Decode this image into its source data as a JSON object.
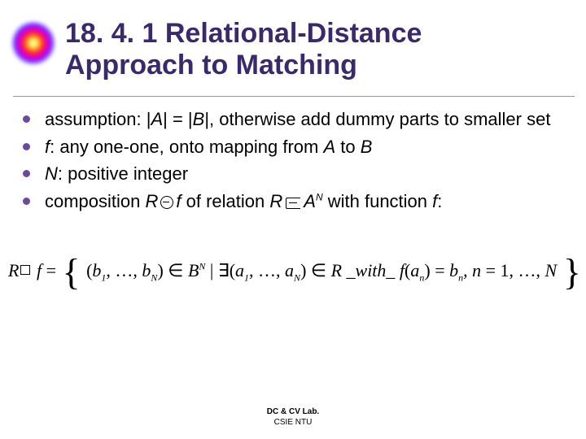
{
  "title": "18. 4. 1 Relational-Distance Approach to Matching",
  "title_color": "#3b2a6b",
  "title_fontsize": 34,
  "bullet_dot_color": "#6a4aa0",
  "body_fontsize": 22,
  "bullets": [
    {
      "text": "assumption: |A| = |B|, otherwise add dummy parts to smaller set"
    },
    {
      "text": "f: any one-one, onto mapping from A to B"
    },
    {
      "text": "N: positive integer"
    },
    {
      "pre": "composition ",
      "mid1": "R",
      "circ": " ∘ ",
      "mid2": "f",
      "mid3": " of relation ",
      "mid4": "R",
      "sub_sup_pre": "A",
      "sub_sup": "N",
      "tail": " with function ",
      "tail_it": "f",
      "tail2": ":"
    }
  ],
  "equation": {
    "lhs": "R ∘ f = ",
    "tuple_b": "(b₁, …, bN)",
    "inB": " ∈ B",
    "supN1": "N",
    "bar": " | ",
    "exists": "∃",
    "tuple_a": "(a₁, …, aN)",
    "inR": " ∈ R _with_ f(aₙ) = bₙ, n = 1, …, N",
    "rbrace": "}"
  },
  "footer": {
    "line1": "DC & CV Lab.",
    "line2": "CSIE NTU"
  },
  "colors": {
    "rule": "#999999",
    "bg": "#ffffff",
    "text": "#000000"
  }
}
